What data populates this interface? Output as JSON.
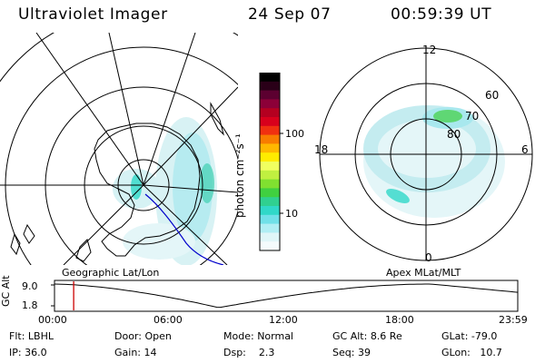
{
  "header": {
    "instrument": "Ultraviolet Imager",
    "date": "24 Sep 07",
    "time": "00:59:39 UT"
  },
  "colorbar": {
    "unit_label": "photon cm⁻²s⁻¹",
    "ticks": [
      {
        "value": 100,
        "label": "100"
      },
      {
        "value": 10,
        "label": "10"
      }
    ],
    "scale": "log",
    "colors": [
      "#000000",
      "#2a0018",
      "#5c0030",
      "#8c0038",
      "#b40020",
      "#d8001c",
      "#f03010",
      "#f87c00",
      "#ffb800",
      "#ffec00",
      "#f0ff60",
      "#c0f040",
      "#80e030",
      "#40d040",
      "#30d090",
      "#30d8c8",
      "#70e0e8",
      "#b0eef4",
      "#e0f6f8",
      "#f4fbfc"
    ]
  },
  "left_map": {
    "caption": "Geographic Lat/Lon"
  },
  "right_polar": {
    "caption": "Apex MLat/MLT",
    "mlt_labels": {
      "top": "12",
      "left": "18",
      "right": "6",
      "bottom": "0"
    },
    "lat_labels": [
      "60",
      "70",
      "80"
    ]
  },
  "altitude_plot": {
    "ylabel": "GC Alt",
    "yticks": [
      "9.0",
      "1.8"
    ],
    "xticks": [
      "00:00",
      "06:00",
      "12:00",
      "18:00",
      "23:59"
    ],
    "marker_hour": 0.994,
    "marker_color": "#cc0000"
  },
  "footer": {
    "row1": [
      {
        "key": "Flt:",
        "value": "LBHL"
      },
      {
        "key": "Door:",
        "value": "Open"
      },
      {
        "key": "Mode:",
        "value": "Normal"
      },
      {
        "key": "GC Alt:",
        "value": "8.6 Re"
      },
      {
        "key": "GLat:",
        "value": "-79.0"
      }
    ],
    "row2": [
      {
        "key": "IP:",
        "value": "36.0"
      },
      {
        "key": "Gain:",
        "value": "14"
      },
      {
        "key": "Dsp:",
        "value": "2.3"
      },
      {
        "key": "Seq:",
        "value": "39"
      },
      {
        "key": "GLon:",
        "value": "10.7"
      }
    ]
  }
}
